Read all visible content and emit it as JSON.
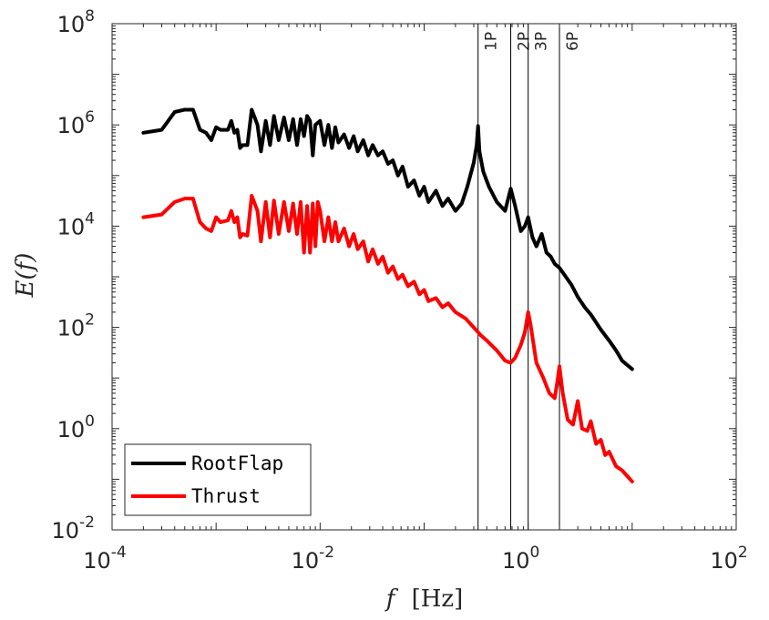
{
  "chart_data": {
    "type": "line",
    "x_scale": "log",
    "y_scale": "log",
    "xlim": [
      0.0001,
      100
    ],
    "ylim": [
      0.01,
      100000000
    ],
    "xlabel": "f [Hz]",
    "xlabel_var": "f",
    "xlabel_unit": "[Hz]",
    "ylabel": "E(f)",
    "x_ticks": [
      {
        "base": "10",
        "exp": "-4",
        "value": 0.0001
      },
      {
        "base": "10",
        "exp": "-2",
        "value": 0.01
      },
      {
        "base": "10",
        "exp": "0",
        "value": 1
      },
      {
        "base": "10",
        "exp": "2",
        "value": 100
      }
    ],
    "y_ticks": [
      {
        "base": "10",
        "exp": "-2",
        "value": 0.01
      },
      {
        "base": "10",
        "exp": "0",
        "value": 1
      },
      {
        "base": "10",
        "exp": "2",
        "value": 100
      },
      {
        "base": "10",
        "exp": "4",
        "value": 10000
      },
      {
        "base": "10",
        "exp": "6",
        "value": 1000000
      },
      {
        "base": "10",
        "exp": "8",
        "value": 100000000
      }
    ],
    "grid": false,
    "legend_position": "bottom-left",
    "vertical_lines": [
      {
        "label": "1P",
        "x": 0.33
      },
      {
        "label": "2P",
        "x": 0.68
      },
      {
        "label": "3P",
        "x": 1.0
      },
      {
        "label": "6P",
        "x": 2.0
      }
    ],
    "series": [
      {
        "name": "RootFlap",
        "color": "#000000",
        "points": [
          [
            0.0002,
            700000
          ],
          [
            0.0003,
            800000
          ],
          [
            0.0004,
            1800000
          ],
          [
            0.0005,
            2000000
          ],
          [
            0.0006,
            2000000
          ],
          [
            0.0007,
            800000
          ],
          [
            0.0008,
            700000
          ],
          [
            0.0009,
            500000
          ],
          [
            0.001,
            900000
          ],
          [
            0.0011,
            800000
          ],
          [
            0.0013,
            800000
          ],
          [
            0.0014,
            1200000
          ],
          [
            0.0015,
            700000
          ],
          [
            0.0016,
            800000
          ],
          [
            0.0017,
            350000
          ],
          [
            0.0018,
            400000
          ],
          [
            0.002,
            400000
          ],
          [
            0.0022,
            2000000
          ],
          [
            0.0025,
            1000000
          ],
          [
            0.0027,
            300000
          ],
          [
            0.003,
            1200000
          ],
          [
            0.0033,
            400000
          ],
          [
            0.0036,
            1500000
          ],
          [
            0.004,
            500000
          ],
          [
            0.0045,
            1400000
          ],
          [
            0.005,
            500000
          ],
          [
            0.0055,
            1300000
          ],
          [
            0.006,
            400000
          ],
          [
            0.0065,
            1300000
          ],
          [
            0.007,
            600000
          ],
          [
            0.0075,
            1500000
          ],
          [
            0.008,
            1200000
          ],
          [
            0.0085,
            250000
          ],
          [
            0.009,
            1000000
          ],
          [
            0.0095,
            1100000
          ],
          [
            0.01,
            1200000
          ],
          [
            0.011,
            400000
          ],
          [
            0.012,
            1000000
          ],
          [
            0.013,
            350000
          ],
          [
            0.014,
            900000
          ],
          [
            0.015,
            450000
          ],
          [
            0.017,
            650000
          ],
          [
            0.019,
            350000
          ],
          [
            0.021,
            600000
          ],
          [
            0.023,
            300000
          ],
          [
            0.026,
            500000
          ],
          [
            0.029,
            250000
          ],
          [
            0.032,
            400000
          ],
          [
            0.036,
            250000
          ],
          [
            0.04,
            300000
          ],
          [
            0.045,
            170000
          ],
          [
            0.05,
            200000
          ],
          [
            0.056,
            100000
          ],
          [
            0.062,
            150000
          ],
          [
            0.07,
            60000
          ],
          [
            0.08,
            80000
          ],
          [
            0.09,
            40000
          ],
          [
            0.1,
            60000
          ],
          [
            0.11,
            30000
          ],
          [
            0.13,
            50000
          ],
          [
            0.15,
            25000
          ],
          [
            0.17,
            35000
          ],
          [
            0.2,
            20000
          ],
          [
            0.23,
            28000
          ],
          [
            0.26,
            60000
          ],
          [
            0.3,
            180000
          ],
          [
            0.32,
            400000
          ],
          [
            0.33,
            950000
          ],
          [
            0.34,
            300000
          ],
          [
            0.37,
            120000
          ],
          [
            0.42,
            60000
          ],
          [
            0.5,
            30000
          ],
          [
            0.6,
            20000
          ],
          [
            0.68,
            55000
          ],
          [
            0.75,
            25000
          ],
          [
            0.85,
            8000
          ],
          [
            0.93,
            10000
          ],
          [
            1.0,
            15000
          ],
          [
            1.1,
            6000
          ],
          [
            1.2,
            4000
          ],
          [
            1.35,
            7000
          ],
          [
            1.5,
            3000
          ],
          [
            1.65,
            2500
          ],
          [
            1.8,
            1800
          ],
          [
            2.0,
            1500
          ],
          [
            2.3,
            1000
          ],
          [
            2.6,
            700
          ],
          [
            3.0,
            400
          ],
          [
            3.5,
            250
          ],
          [
            4.0,
            180
          ],
          [
            5.0,
            90
          ],
          [
            6.0,
            55
          ],
          [
            7.0,
            35
          ],
          [
            8.0,
            22
          ],
          [
            10.0,
            15
          ]
        ]
      },
      {
        "name": "Thrust",
        "color": "#ff0000",
        "points": [
          [
            0.0002,
            15000
          ],
          [
            0.0003,
            17000
          ],
          [
            0.0004,
            30000
          ],
          [
            0.0005,
            35000
          ],
          [
            0.0006,
            35000
          ],
          [
            0.0007,
            12000
          ],
          [
            0.0008,
            9000
          ],
          [
            0.0009,
            8000
          ],
          [
            0.001,
            15000
          ],
          [
            0.0011,
            12000
          ],
          [
            0.0013,
            13000
          ],
          [
            0.0014,
            20000
          ],
          [
            0.0015,
            12000
          ],
          [
            0.0016,
            15000
          ],
          [
            0.0017,
            6000
          ],
          [
            0.0018,
            7000
          ],
          [
            0.002,
            6500
          ],
          [
            0.0022,
            40000
          ],
          [
            0.0025,
            20000
          ],
          [
            0.0027,
            5000
          ],
          [
            0.003,
            30000
          ],
          [
            0.0033,
            6000
          ],
          [
            0.0036,
            32000
          ],
          [
            0.004,
            7000
          ],
          [
            0.0045,
            30000
          ],
          [
            0.005,
            8000
          ],
          [
            0.0055,
            28000
          ],
          [
            0.006,
            7000
          ],
          [
            0.0065,
            30000
          ],
          [
            0.007,
            3000
          ],
          [
            0.0075,
            25000
          ],
          [
            0.008,
            3000
          ],
          [
            0.0085,
            28000
          ],
          [
            0.009,
            4000
          ],
          [
            0.0095,
            30000
          ],
          [
            0.01,
            20000
          ],
          [
            0.011,
            5000
          ],
          [
            0.012,
            15000
          ],
          [
            0.013,
            5000
          ],
          [
            0.014,
            12000
          ],
          [
            0.015,
            5000
          ],
          [
            0.017,
            9000
          ],
          [
            0.019,
            4000
          ],
          [
            0.021,
            7000
          ],
          [
            0.023,
            3500
          ],
          [
            0.026,
            5000
          ],
          [
            0.029,
            2000
          ],
          [
            0.032,
            3500
          ],
          [
            0.036,
            1800
          ],
          [
            0.04,
            2500
          ],
          [
            0.045,
            1200
          ],
          [
            0.05,
            1600
          ],
          [
            0.056,
            900
          ],
          [
            0.062,
            1100
          ],
          [
            0.07,
            650
          ],
          [
            0.08,
            800
          ],
          [
            0.09,
            450
          ],
          [
            0.1,
            550
          ],
          [
            0.11,
            330
          ],
          [
            0.13,
            380
          ],
          [
            0.15,
            250
          ],
          [
            0.17,
            300
          ],
          [
            0.2,
            200
          ],
          [
            0.25,
            150
          ],
          [
            0.3,
            100
          ],
          [
            0.35,
            70
          ],
          [
            0.4,
            55
          ],
          [
            0.5,
            35
          ],
          [
            0.6,
            22
          ],
          [
            0.68,
            20
          ],
          [
            0.75,
            25
          ],
          [
            0.85,
            45
          ],
          [
            0.93,
            80
          ],
          [
            1.0,
            200
          ],
          [
            1.05,
            120
          ],
          [
            1.2,
            20
          ],
          [
            1.4,
            10
          ],
          [
            1.6,
            5
          ],
          [
            1.8,
            4
          ],
          [
            1.9,
            8
          ],
          [
            2.0,
            17
          ],
          [
            2.15,
            5
          ],
          [
            2.4,
            1.5
          ],
          [
            2.7,
            1.2
          ],
          [
            3.0,
            3.5
          ],
          [
            3.3,
            1
          ],
          [
            3.7,
            0.9
          ],
          [
            4.0,
            1.4
          ],
          [
            4.5,
            0.5
          ],
          [
            5.0,
            0.6
          ],
          [
            5.5,
            0.3
          ],
          [
            6.0,
            0.35
          ],
          [
            7.0,
            0.18
          ],
          [
            8.0,
            0.15
          ],
          [
            10.0,
            0.09
          ]
        ]
      }
    ]
  }
}
